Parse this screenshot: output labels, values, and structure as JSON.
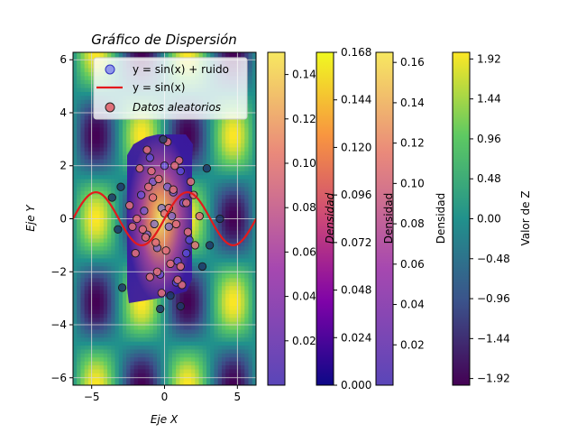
{
  "chart_data": {
    "type": "scatter",
    "title": "Gráfico de Dispersión",
    "xlabel": "Eje X",
    "ylabel": "Eje Y",
    "xlim": [
      -6.28,
      6.28
    ],
    "ylim": [
      -6.28,
      6.28
    ],
    "xticks": [
      -5,
      0,
      5
    ],
    "xtick_labels": [
      "−5",
      "0",
      "5"
    ],
    "yticks": [
      -6,
      -4,
      -2,
      0,
      2,
      4,
      6
    ],
    "ytick_labels": [
      "−6",
      "−4",
      "−2",
      "0",
      "2",
      "4",
      "6"
    ],
    "grid": true,
    "legend_placement": "upper-center",
    "background": {
      "type": "heatmap",
      "function": "sin(x)·cos(y)",
      "colormap": "viridis",
      "range": [
        -2.0,
        2.0
      ]
    },
    "series": [
      {
        "name": "y = sin(x) + ruido",
        "type": "scatter",
        "color": "#5b5bf0",
        "x": [
          -1.6,
          -1.2,
          -0.8,
          -0.5,
          -0.2,
          0.0,
          0.3,
          0.6,
          0.9,
          1.3,
          1.7,
          -1.0,
          -0.3,
          0.5,
          1.1,
          -0.7,
          0.2,
          0.8,
          -1.4,
          1.5
        ],
        "y": [
          0.9,
          -0.6,
          1.4,
          -1.1,
          0.4,
          2.0,
          -0.3,
          1.0,
          -1.6,
          0.6,
          -0.8,
          2.3,
          -2.1,
          0.1,
          1.8,
          -0.2,
          1.2,
          -2.4,
          0.3,
          -1.3
        ]
      },
      {
        "name": "y = sin(x)",
        "type": "line",
        "color": "#e41a1c",
        "function": "sin(x)",
        "x_range": [
          -6.28,
          6.28
        ]
      },
      {
        "name": "Datos aleatorios",
        "type": "scatter",
        "color": "#e0707a",
        "x": [
          -2.4,
          -2.0,
          -1.7,
          -1.5,
          -1.2,
          -1.0,
          -0.8,
          -0.6,
          -0.4,
          -0.2,
          0.0,
          0.2,
          0.4,
          0.6,
          0.8,
          1.0,
          1.2,
          1.5,
          1.8,
          2.1,
          2.4,
          -1.9,
          -0.9,
          0.1,
          1.1,
          -1.3,
          0.7,
          1.6,
          -0.5,
          0.3,
          -2.2,
          2.0,
          -1.1,
          0.9,
          -0.1
        ],
        "y": [
          0.5,
          -1.3,
          1.9,
          -0.4,
          2.6,
          -2.2,
          0.8,
          -0.9,
          1.5,
          -2.8,
          0.2,
          2.9,
          -1.7,
          1.1,
          -0.2,
          2.2,
          -2.5,
          0.6,
          1.4,
          -1.0,
          0.1,
          0.0,
          1.8,
          -1.2,
          -1.8,
          -0.7,
          2.0,
          -0.5,
          -2.0,
          0.4,
          -0.3,
          0.9,
          1.2,
          -2.3,
          3.0
        ]
      },
      {
        "name": "",
        "type": "scatter",
        "color": "#1f3a68",
        "x": [
          -3.6,
          -3.2,
          -2.9,
          2.9,
          3.1,
          -0.3,
          1.1,
          3.8,
          -3.0,
          2.6,
          -0.1,
          0.4
        ],
        "y": [
          0.8,
          -0.4,
          -2.6,
          1.9,
          -1.0,
          -3.4,
          -3.3,
          0.0,
          1.2,
          -1.8,
          3.0,
          -2.9
        ]
      }
    ],
    "colorbars": [
      {
        "label": "",
        "colormap": "plasma-light",
        "range": [
          0.0,
          0.15
        ],
        "ticks": [
          0.02,
          0.04,
          0.06,
          0.08,
          0.1,
          0.12,
          0.14
        ],
        "tick_labels": [
          "0.02",
          "0.04",
          "0.06",
          "0.08",
          "0.10",
          "0.12",
          "0.14"
        ]
      },
      {
        "label": "Densidad",
        "colormap": "plasma",
        "range": [
          0.0,
          0.168
        ],
        "ticks": [
          0.0,
          0.024,
          0.048,
          0.072,
          0.096,
          0.12,
          0.144,
          0.168
        ],
        "tick_labels": [
          "0.000",
          "0.024",
          "0.048",
          "0.072",
          "0.096",
          "0.120",
          "0.144",
          "0.168"
        ],
        "label_italic": true
      },
      {
        "label": "Densidad",
        "colormap": "plasma-light",
        "range": [
          0.0,
          0.165
        ],
        "ticks": [
          0.02,
          0.04,
          0.06,
          0.08,
          0.1,
          0.12,
          0.14,
          0.16
        ],
        "tick_labels": [
          "0.02",
          "0.04",
          "0.06",
          "0.08",
          "0.10",
          "0.12",
          "0.14",
          "0.16"
        ]
      },
      {
        "label": "Densidad",
        "colormap": "none",
        "range": [
          0.0,
          1.0
        ],
        "ticks": [],
        "tick_labels": []
      },
      {
        "label": "Valor de Z",
        "colormap": "viridis",
        "range": [
          -2.0,
          2.0
        ],
        "ticks": [
          -1.92,
          -1.44,
          -0.96,
          -0.48,
          0.0,
          0.48,
          0.96,
          1.44,
          1.92
        ],
        "tick_labels": [
          "−1.92",
          "−1.44",
          "−0.96",
          "−0.48",
          "0.00",
          "0.48",
          "0.96",
          "1.44",
          "1.92"
        ]
      }
    ],
    "legend": [
      {
        "label": "y = sin(x) + ruido",
        "kind": "marker",
        "color": "#5b5bf0",
        "italic": false
      },
      {
        "label": "y = sin(x)",
        "kind": "line",
        "color": "#e41a1c",
        "italic": false
      },
      {
        "label": "Datos aleatorios",
        "kind": "marker",
        "color": "#e0707a",
        "italic": true
      }
    ]
  }
}
